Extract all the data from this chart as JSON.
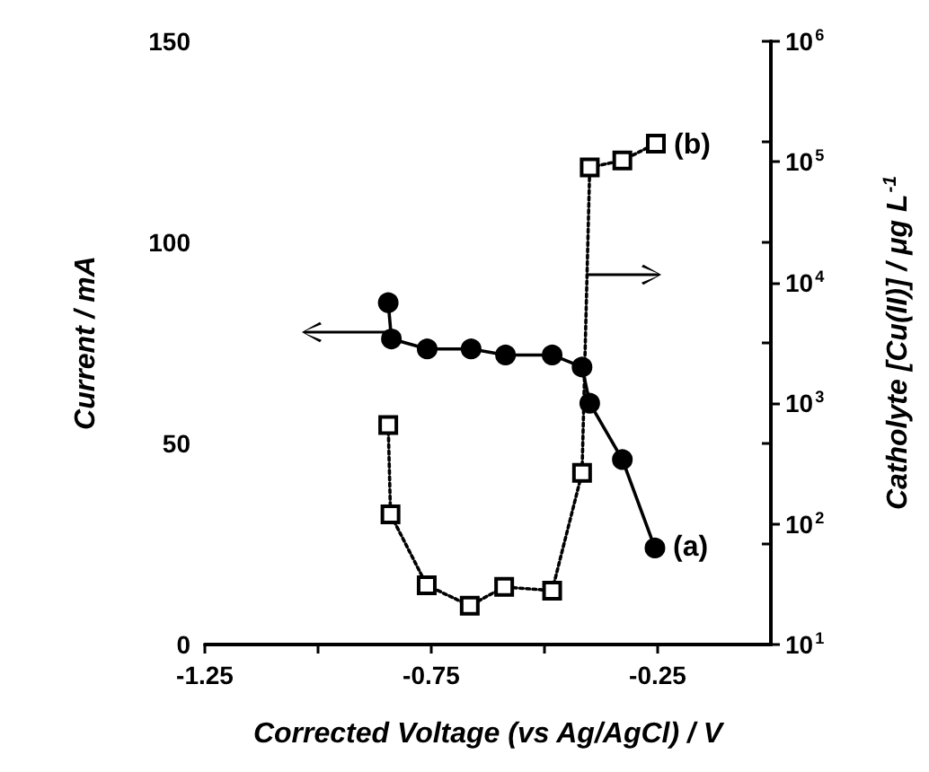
{
  "chart_data": {
    "type": "line",
    "xlabel": "Corrected Voltage (vs Ag/AgCl) / V",
    "ylabel": "Current / mA",
    "y2label": "Catholyte [Cu(II)] / μg L$^{-1}$",
    "xlim": [
      -1.25,
      0
    ],
    "xticks": [
      -1.25,
      {
        "value": -1,
        "label": null
      },
      -0.75,
      {
        "value": -0.5,
        "label": null
      },
      -0.25
    ],
    "ylim": [
      0,
      150
    ],
    "yticks": [
      0,
      {
        "value": 25,
        "label": null
      },
      50,
      {
        "value": 75,
        "label": null
      },
      100,
      {
        "value": 125,
        "label": null
      },
      150
    ],
    "y2lim": [
      10,
      1000000
    ],
    "y2ticks": [
      {
        "value": 10,
        "label": "10$^{1}$"
      },
      {
        "value": 100,
        "label": "10$^{2}$"
      },
      {
        "value": 1000,
        "label": "10$^{3}$"
      },
      {
        "value": 10000,
        "label": "10$^{4}$"
      },
      {
        "value": 100000,
        "label": "10$^{5}$"
      },
      {
        "value": 1000000,
        "label": "10$^{6}$"
      }
    ],
    "log": "y2",
    "series": [
      {
        "color": "#000000",
        "marker": "circle",
        "line_style": "solid",
        "x": [
          -0.845,
          -0.838,
          -0.759,
          -0.662,
          -0.586,
          -0.483,
          -0.417,
          -0.4,
          -0.328,
          -0.256
        ],
        "values": [
          85,
          76,
          73.5,
          73.5,
          72,
          72,
          69,
          60,
          46,
          24
        ]
      },
      {
        "color": "#000000",
        "marker": "square",
        "line_style": "dotted",
        "axis": "y2",
        "x": [
          -0.845,
          -0.84,
          -0.76,
          -0.665,
          -0.589,
          -0.483,
          -0.417,
          -0.4,
          -0.328,
          -0.254
        ],
        "values": [
          660,
          120,
          31,
          21,
          30,
          28,
          265,
          90000,
          103000,
          142000
        ]
      }
    ],
    "annotations": [
      {
        "text": "(a)",
        "x": -0.256,
        "y": 24
      },
      {
        "text": "(b)",
        "x": -0.254,
        "y": 124
      }
    ]
  }
}
